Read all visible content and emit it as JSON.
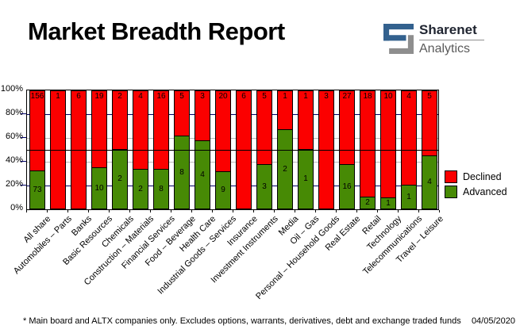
{
  "header": {
    "title": "Market Breadth Report",
    "brand_top": "Sharenet",
    "brand_bottom": "Analytics"
  },
  "chart_data": {
    "type": "bar",
    "stacked": true,
    "stack_mode": "percent-of-total",
    "title": "",
    "xlabel": "",
    "ylabel": "",
    "ylim": [
      0,
      100
    ],
    "ytick_labels": [
      "100%",
      "80%",
      "60%",
      "40%",
      "20%",
      "0%"
    ],
    "reference_line_pct": 50,
    "legend_position": "right",
    "grid": {
      "navy_lines_pct": [
        80,
        20
      ],
      "gray_lines_pct": [
        60,
        40
      ],
      "navy_color": "#000066",
      "gray_color": "#b8b8b8"
    },
    "categories": [
      "All share",
      "Automobiles – Parts",
      "Banks",
      "Basic Resources",
      "Chemicals",
      "Construction – Materials",
      "Financial Services",
      "Food – Beverage",
      "Health Care",
      "Industrial Goods – Services",
      "Insurance",
      "Investment Instruments",
      "Media",
      "Oil – Gas",
      "Personal – Household Goods",
      "Real Estate",
      "Retail",
      "Technology",
      "Telecommunications",
      "Travel – Leisure"
    ],
    "series": [
      {
        "name": "Declined",
        "color": "#fb0000",
        "values": [
          156,
          1,
          6,
          19,
          2,
          4,
          16,
          5,
          3,
          20,
          6,
          5,
          1,
          1,
          3,
          27,
          18,
          10,
          4,
          5
        ]
      },
      {
        "name": "Advanced",
        "color": "#478a05",
        "values": [
          73,
          0,
          0,
          10,
          2,
          2,
          8,
          8,
          4,
          9,
          0,
          3,
          2,
          1,
          0,
          16,
          2,
          1,
          1,
          4
        ]
      }
    ]
  },
  "footer": {
    "note": "* Main board and ALTX companies only. Excludes options, warrants, derivatives, debt and exchange traded funds",
    "date": "04/05/2020"
  }
}
